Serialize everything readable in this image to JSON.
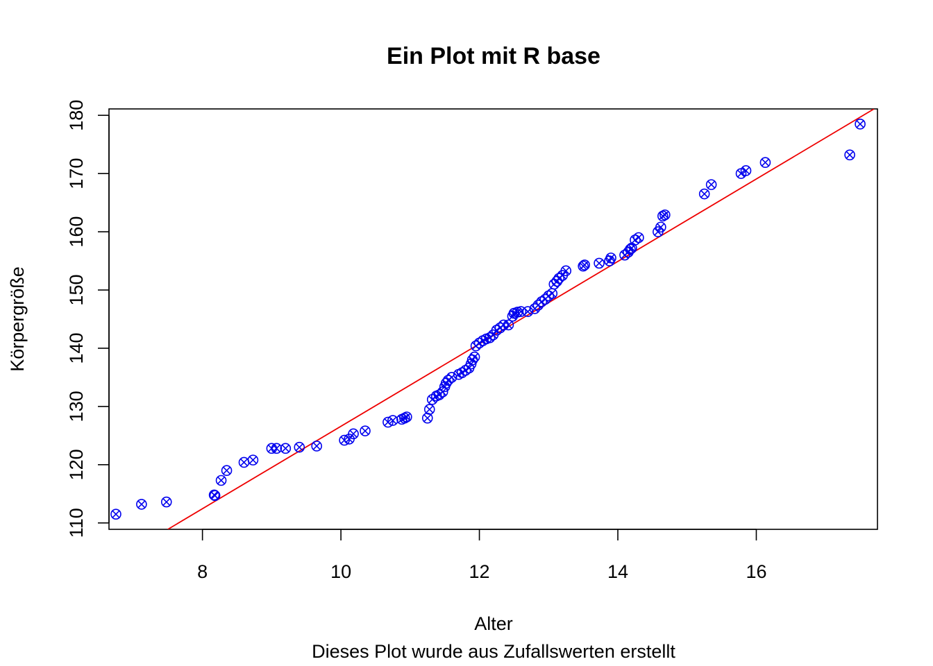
{
  "chart_data": {
    "type": "scatter",
    "title": "Ein Plot mit R base",
    "xlabel": "Alter",
    "ylabel": "Körpergröße",
    "subtitle": "Dieses Plot wurde aus Zufallswerten erstellt",
    "xlim": [
      6.65,
      17.75
    ],
    "ylim": [
      108.9,
      181.1
    ],
    "xticks": [
      8,
      10,
      12,
      14,
      16
    ],
    "yticks": [
      110,
      120,
      130,
      140,
      150,
      160,
      170,
      180
    ],
    "grid": false,
    "legend": "none",
    "point_color": "#0000ee",
    "line_color": "#ee0000",
    "regression_line": {
      "x": [
        7.5,
        17.7
      ],
      "y": [
        108.9,
        181.1
      ]
    },
    "points": {
      "x": [
        6.75,
        7.12,
        7.48,
        8.17,
        8.18,
        8.27,
        8.35,
        8.6,
        8.73,
        9.0,
        9.07,
        9.2,
        9.4,
        9.65,
        10.05,
        10.12,
        10.18,
        10.35,
        10.68,
        10.75,
        10.88,
        10.92,
        10.95,
        11.25,
        11.28,
        11.32,
        11.38,
        11.42,
        11.47,
        11.5,
        11.52,
        11.55,
        11.6,
        11.7,
        11.75,
        11.8,
        11.85,
        11.88,
        11.9,
        11.93,
        11.95,
        12.0,
        12.05,
        12.1,
        12.15,
        12.2,
        12.25,
        12.3,
        12.35,
        12.42,
        12.48,
        12.5,
        12.55,
        12.6,
        12.7,
        12.8,
        12.85,
        12.9,
        12.95,
        13.0,
        13.05,
        13.08,
        13.12,
        13.15,
        13.2,
        13.25,
        13.5,
        13.52,
        13.73,
        13.88,
        13.9,
        14.1,
        14.15,
        14.18,
        14.2,
        14.25,
        14.3,
        14.58,
        14.62,
        14.65,
        14.68,
        15.25,
        15.35,
        15.78,
        15.85,
        16.13,
        17.35,
        17.5
      ],
      "y": [
        111.5,
        113.2,
        113.6,
        114.8,
        114.7,
        117.3,
        119.0,
        120.4,
        120.8,
        122.8,
        122.8,
        122.8,
        123.0,
        123.2,
        124.2,
        124.4,
        125.3,
        125.8,
        127.3,
        127.6,
        127.8,
        128.0,
        128.2,
        128.0,
        129.5,
        131.2,
        131.8,
        132.0,
        132.5,
        133.4,
        134.0,
        134.5,
        135.0,
        135.5,
        135.8,
        136.2,
        136.6,
        137.3,
        138.0,
        138.5,
        140.4,
        140.9,
        141.3,
        141.6,
        141.8,
        142.3,
        143.1,
        143.5,
        144.0,
        144.0,
        145.5,
        146.0,
        146.2,
        146.3,
        146.3,
        146.8,
        147.4,
        148.0,
        148.4,
        149.0,
        149.4,
        151.0,
        151.5,
        152.0,
        152.5,
        153.3,
        154.1,
        154.3,
        154.6,
        155.0,
        155.5,
        156.0,
        156.5,
        157.0,
        157.2,
        158.6,
        159.0,
        160.0,
        160.8,
        162.7,
        162.9,
        166.5,
        168.1,
        170.0,
        170.5,
        171.9,
        173.2,
        178.5
      ]
    }
  }
}
